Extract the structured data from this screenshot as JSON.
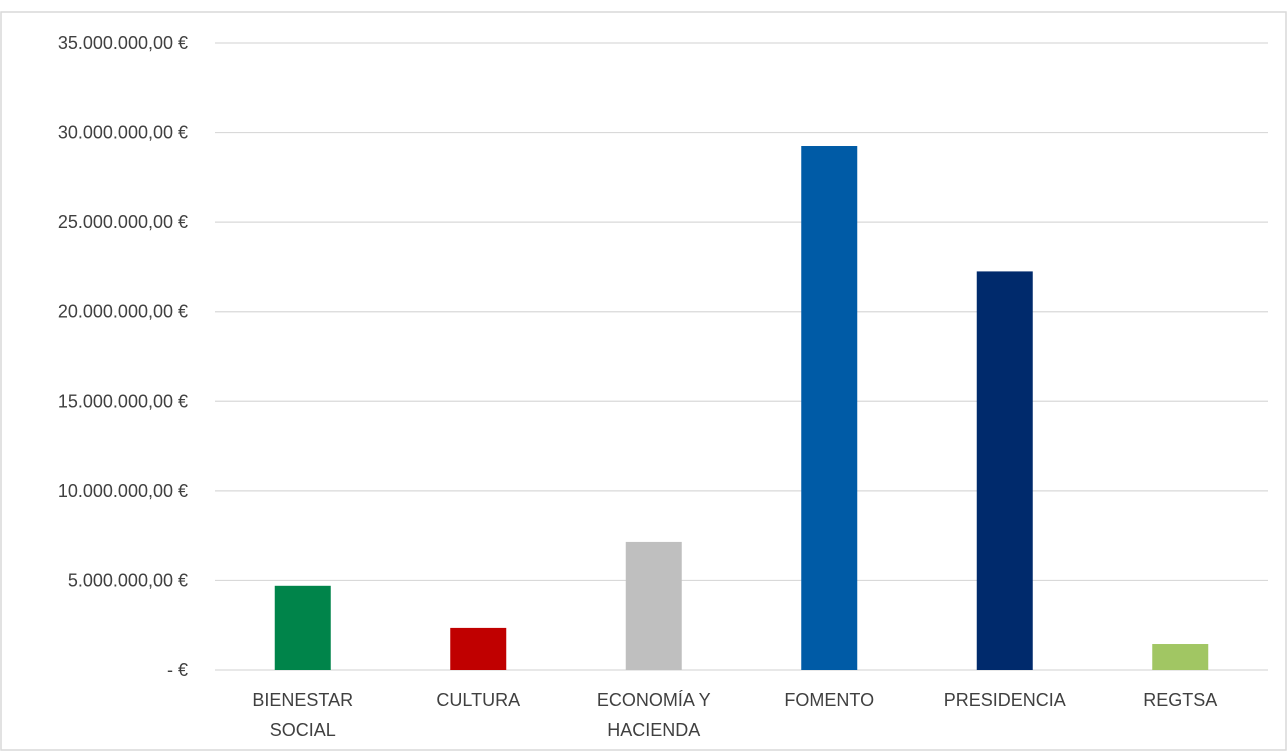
{
  "chart_data": {
    "type": "bar",
    "categories": [
      [
        "BIENESTAR",
        "SOCIAL"
      ],
      [
        "CULTURA"
      ],
      [
        "ECONOMÍA Y",
        "HACIENDA"
      ],
      [
        "FOMENTO"
      ],
      [
        "PRESIDENCIA"
      ],
      [
        "REGTSA"
      ]
    ],
    "values": [
      4700000,
      2350000,
      7150000,
      29250000,
      22250000,
      1450000
    ],
    "colors": [
      "#00844a",
      "#c00000",
      "#bfbfbf",
      "#005ba6",
      "#002a6c",
      "#a1c663"
    ],
    "ylim": [
      0,
      35000000
    ],
    "yticks": [
      0,
      5000000,
      10000000,
      15000000,
      20000000,
      25000000,
      30000000,
      35000000
    ],
    "ytick_labels": [
      "-   €",
      "5.000.000,00 €",
      "10.000.000,00 €",
      "15.000.000,00 €",
      "20.000.000,00 €",
      "25.000.000,00 €",
      "30.000.000,00 €",
      "35.000.000,00 €"
    ],
    "title": "",
    "xlabel": "",
    "ylabel": "",
    "grid": true,
    "legend": "none"
  }
}
